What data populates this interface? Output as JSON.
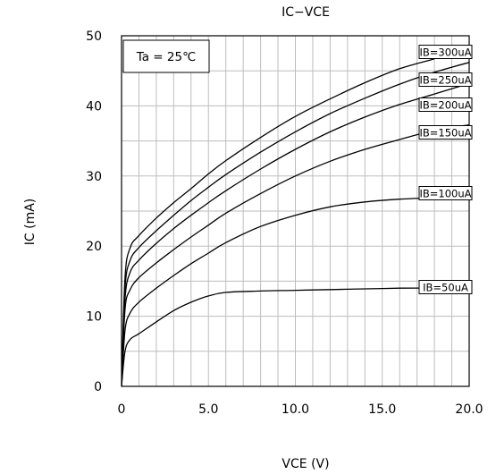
{
  "chart_data": {
    "type": "line",
    "title": "IC−VCE",
    "xlabel": "VCE (V)",
    "ylabel": "IC (mA)",
    "xlim": [
      0,
      20
    ],
    "ylim": [
      0,
      50
    ],
    "x_major_ticks": [
      0,
      5,
      10,
      15,
      20
    ],
    "x_tick_labels": [
      "0",
      "5.0",
      "10.0",
      "15.0",
      "20.0"
    ],
    "y_major_ticks": [
      0,
      10,
      20,
      30,
      40,
      50
    ],
    "y_tick_labels": [
      "0",
      "10",
      "20",
      "30",
      "40",
      "50"
    ],
    "grid": true,
    "annotation": "Ta = 25℃",
    "series": [
      {
        "name": "IB=300uA",
        "points": [
          [
            0,
            0
          ],
          [
            0.2,
            15.5
          ],
          [
            0.5,
            19.8
          ],
          [
            1,
            21.5
          ],
          [
            2,
            24
          ],
          [
            3,
            26.2
          ],
          [
            4,
            28.2
          ],
          [
            5,
            30.3
          ],
          [
            6,
            32.2
          ],
          [
            8,
            35.5
          ],
          [
            10,
            38.5
          ],
          [
            12,
            41
          ],
          [
            14,
            43.3
          ],
          [
            16,
            45.3
          ],
          [
            18,
            46.7
          ]
        ]
      },
      {
        "name": "IB=250uA",
        "points": [
          [
            0,
            0
          ],
          [
            0.2,
            14
          ],
          [
            0.5,
            18
          ],
          [
            1,
            19.8
          ],
          [
            2,
            22.2
          ],
          [
            3,
            24.4
          ],
          [
            4,
            26.5
          ],
          [
            5,
            28.4
          ],
          [
            6,
            30.2
          ],
          [
            8,
            33.4
          ],
          [
            10,
            36.3
          ],
          [
            12,
            38.9
          ],
          [
            14,
            41.1
          ],
          [
            16,
            43.1
          ],
          [
            18,
            44.8
          ],
          [
            20,
            46.2
          ]
        ]
      },
      {
        "name": "IB=200uA",
        "points": [
          [
            0,
            0
          ],
          [
            0.2,
            12.5
          ],
          [
            0.5,
            16.3
          ],
          [
            1,
            18
          ],
          [
            2,
            20.4
          ],
          [
            3,
            22.5
          ],
          [
            4,
            24.4
          ],
          [
            5,
            26.2
          ],
          [
            6,
            27.9
          ],
          [
            8,
            31
          ],
          [
            10,
            33.8
          ],
          [
            12,
            36.3
          ],
          [
            14,
            38.4
          ],
          [
            16,
            40.2
          ],
          [
            18,
            41.7
          ],
          [
            20,
            43.2
          ]
        ]
      },
      {
        "name": "IB=150uA",
        "points": [
          [
            0,
            0
          ],
          [
            0.2,
            11
          ],
          [
            0.5,
            13.8
          ],
          [
            1,
            15.5
          ],
          [
            2,
            17.6
          ],
          [
            3,
            19.5
          ],
          [
            4,
            21.3
          ],
          [
            5,
            23
          ],
          [
            6,
            24.7
          ],
          [
            8,
            27.5
          ],
          [
            10,
            30
          ],
          [
            12,
            32.1
          ],
          [
            14,
            33.8
          ],
          [
            16,
            35.2
          ],
          [
            18,
            36.5
          ],
          [
            20,
            37.3
          ]
        ]
      },
      {
        "name": "IB=100uA",
        "points": [
          [
            0,
            0
          ],
          [
            0.2,
            8
          ],
          [
            0.5,
            10.5
          ],
          [
            1,
            12
          ],
          [
            2,
            14
          ],
          [
            3,
            15.8
          ],
          [
            4,
            17.5
          ],
          [
            5,
            19
          ],
          [
            6,
            20.5
          ],
          [
            8,
            22.8
          ],
          [
            10,
            24.4
          ],
          [
            12,
            25.6
          ],
          [
            14,
            26.3
          ],
          [
            16,
            26.7
          ],
          [
            18,
            26.9
          ],
          [
            20,
            27
          ]
        ]
      },
      {
        "name": "IB=50uA",
        "points": [
          [
            0,
            0
          ],
          [
            0.2,
            5
          ],
          [
            0.5,
            6.7
          ],
          [
            1,
            7.5
          ],
          [
            2,
            9.2
          ],
          [
            3,
            10.8
          ],
          [
            4,
            12
          ],
          [
            5,
            12.9
          ],
          [
            6,
            13.4
          ],
          [
            8,
            13.6
          ],
          [
            10,
            13.7
          ],
          [
            12,
            13.8
          ],
          [
            14,
            13.9
          ],
          [
            16,
            14
          ],
          [
            18,
            14
          ],
          [
            20,
            14
          ]
        ]
      }
    ]
  }
}
